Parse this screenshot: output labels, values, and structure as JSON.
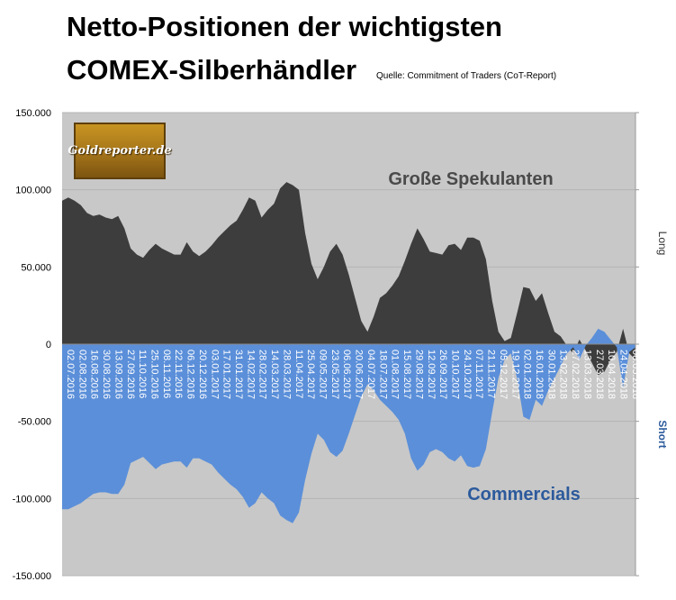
{
  "header": {
    "title_line1": "Netto-Positionen der wichtigsten",
    "title_line2": "COMEX-Silberhändler",
    "source": "Quelle: Commitment of Traders (CoT-Report)"
  },
  "logo": {
    "text": "Goldreporter.de"
  },
  "colors": {
    "plot_bg": "#c8c8c8",
    "speculators": "#3d3d3d",
    "commercials": "#5b8fd9",
    "commercials_label": "#2c5a9c",
    "speculators_label": "#4a4a4a"
  },
  "chart_data": {
    "type": "area",
    "ylim": [
      -150000,
      150000
    ],
    "yticks": [
      150000,
      100000,
      50000,
      0,
      -50000,
      -100000,
      -150000
    ],
    "ytick_labels": [
      "150.000",
      "100.000",
      "50.000",
      "0",
      "-50.000",
      "-100.000",
      "-150.000"
    ],
    "right_axis_labels": {
      "long": "Long",
      "short": "Short"
    },
    "annotations": {
      "speculators": "Große Spekulanten",
      "commercials": "Commercials"
    },
    "x_tick_labels": [
      "02.07.2016",
      "02.08.2016",
      "16.08.2016",
      "30.08.2016",
      "13.09.2016",
      "27.09.2016",
      "11.10.2016",
      "25.10.2016",
      "08.11.2016",
      "22.11.2016",
      "06.12.2016",
      "20.12.2016",
      "03.01.2017",
      "17.01.2017",
      "31.01.2017",
      "14.02.2017",
      "28.02.2017",
      "14.03.2017",
      "28.03.2017",
      "11.04.2017",
      "25.04.2017",
      "09.05.2017",
      "23.05.2017",
      "06.06.2017",
      "20.06.2017",
      "04.07.2017",
      "18.07.2017",
      "01.08.2017",
      "15.08.2017",
      "29.08.2017",
      "12.09.2017",
      "26.09.2017",
      "10.10.2017",
      "24.10.2017",
      "07.11.2017",
      "21.11.2017",
      "05.12.2017",
      "19.12.2017",
      "02.01.2018",
      "16.01.2018",
      "30.01.2018",
      "13.02.2018",
      "27.02.2018",
      "13.03.2018",
      "27.03.2018",
      "10.04.2018",
      "24.04.2018",
      "08.05.2018"
    ],
    "series": [
      {
        "name": "Große Spekulanten",
        "values": [
          93000,
          95000,
          93000,
          90000,
          85000,
          83000,
          84000,
          82000,
          81000,
          83000,
          75000,
          62000,
          58000,
          56000,
          61000,
          65000,
          62000,
          60000,
          58000,
          58000,
          66000,
          60000,
          57000,
          60000,
          64000,
          69000,
          73000,
          77000,
          80000,
          87000,
          95000,
          93000,
          82000,
          87000,
          91000,
          101000,
          105000,
          103000,
          100000,
          72000,
          52000,
          42000,
          50000,
          60000,
          65000,
          58000,
          45000,
          30000,
          15000,
          8000,
          18000,
          30000,
          33000,
          38000,
          44000,
          54000,
          65000,
          75000,
          68000,
          60000,
          59000,
          58000,
          64000,
          65000,
          61000,
          69000,
          69000,
          67000,
          55000,
          28000,
          8000,
          2000,
          4000,
          20000,
          37000,
          36000,
          28000,
          33000,
          20000,
          8000,
          5000,
          -1000,
          -6000,
          3000,
          -4000,
          -12000,
          -20000,
          -18000,
          -10000,
          -5000,
          10000,
          -6000,
          -10000
        ]
      },
      {
        "name": "Commercials",
        "values": [
          -107000,
          -107000,
          -105000,
          -103000,
          -100000,
          -97000,
          -96000,
          -96000,
          -97000,
          -97000,
          -91000,
          -77000,
          -75000,
          -73000,
          -77000,
          -81000,
          -78000,
          -77000,
          -76000,
          -76000,
          -80000,
          -74000,
          -74000,
          -76000,
          -78000,
          -83000,
          -87000,
          -91000,
          -94000,
          -99000,
          -106000,
          -103000,
          -96000,
          -100000,
          -103000,
          -111000,
          -114000,
          -116000,
          -109000,
          -88000,
          -71000,
          -58000,
          -62000,
          -70000,
          -73000,
          -69000,
          -58000,
          -46000,
          -34000,
          -26000,
          -30000,
          -36000,
          -40000,
          -44000,
          -49000,
          -58000,
          -74000,
          -82000,
          -78000,
          -70000,
          -68000,
          -70000,
          -74000,
          -76000,
          -72000,
          -79000,
          -80000,
          -79000,
          -68000,
          -44000,
          -22000,
          -10000,
          -6000,
          -22000,
          -47000,
          -49000,
          -36000,
          -40000,
          -30000,
          -22000,
          -14000,
          -6000,
          -2000,
          -10000,
          -1000,
          4000,
          10000,
          8000,
          3000,
          -2000,
          -28000,
          -5000,
          -2000
        ]
      }
    ]
  }
}
